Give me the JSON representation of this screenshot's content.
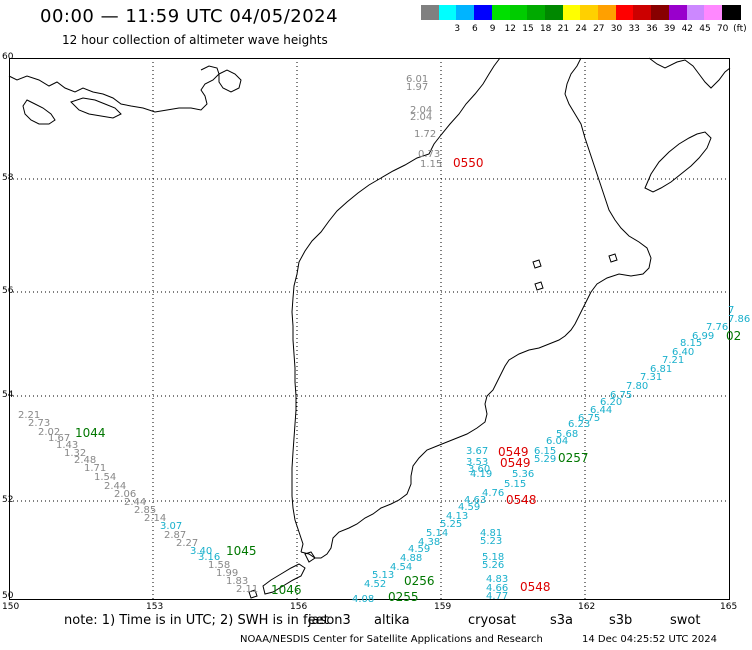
{
  "header": {
    "title": "00:00 — 11:59 UTC 04/05/2024",
    "subtitle": "12 hour collection of altimeter wave heights"
  },
  "scale": {
    "unit": "(ft)",
    "items": [
      {
        "label": "",
        "color": "#808080"
      },
      {
        "label": "3",
        "color": "#00ffff"
      },
      {
        "label": "6",
        "color": "#00b4ff"
      },
      {
        "label": "9",
        "color": "#0000ff"
      },
      {
        "label": "12",
        "color": "#00e000"
      },
      {
        "label": "15",
        "color": "#00cc00"
      },
      {
        "label": "18",
        "color": "#00aa00"
      },
      {
        "label": "21",
        "color": "#008800"
      },
      {
        "label": "24",
        "color": "#ffff00"
      },
      {
        "label": "27",
        "color": "#ffd000"
      },
      {
        "label": "30",
        "color": "#ffa000"
      },
      {
        "label": "33",
        "color": "#ff0000"
      },
      {
        "label": "36",
        "color": "#cc0000"
      },
      {
        "label": "39",
        "color": "#880000"
      },
      {
        "label": "42",
        "color": "#9900cc"
      },
      {
        "label": "45",
        "color": "#cc88ff"
      },
      {
        "label": "70",
        "color": "#ff88ff"
      },
      {
        "label": "",
        "color": "#000000"
      }
    ]
  },
  "axes": {
    "lon_labels": [
      "150",
      "153",
      "156",
      "159",
      "162",
      "165"
    ],
    "lat_labels": [
      "60",
      "58",
      "56",
      "54",
      "52",
      "50"
    ]
  },
  "passes": [
    {
      "time": "0550",
      "color": "#dd0000"
    },
    {
      "time": "1044",
      "color": "#007700"
    },
    {
      "time": "1045",
      "color": "#007700"
    },
    {
      "time": "1046",
      "color": "#007700"
    },
    {
      "time": "0549",
      "color": "#dd0000"
    },
    {
      "time": "0549",
      "color": "#dd0000"
    },
    {
      "time": "0257",
      "color": "#007700"
    },
    {
      "time": "0548",
      "color": "#dd0000"
    },
    {
      "time": "0548",
      "color": "#dd0000"
    },
    {
      "time": "0256",
      "color": "#007700"
    },
    {
      "time": "0255",
      "color": "#007700"
    },
    {
      "time": "02",
      "color": "#007700"
    }
  ],
  "measurements": [
    {
      "track": "gray-north",
      "color": "#888888",
      "values": [
        "6.01",
        "1.97",
        "2.04",
        "2.04",
        "1.72",
        "0.73",
        "1.15"
      ]
    },
    {
      "track": "gray-west",
      "color": "#888888",
      "values": [
        "2.21",
        "2.73",
        "2.02",
        "1.67",
        "1.43",
        "1.32",
        "2.48",
        "1.71",
        "1.54",
        "2.44",
        "2.06",
        "2.44",
        "2.85",
        "2.14",
        "2.87",
        "2.27",
        "1.58",
        "1.99",
        "1.83",
        "2.11"
      ]
    },
    {
      "track": "cyan-west",
      "color": "#1ab0cc",
      "values": [
        "3.07",
        "3.40",
        "3.16"
      ]
    },
    {
      "track": "cyan-east",
      "color": "#1ab0cc",
      "values": [
        "7",
        "7.86",
        "7.76",
        "6.99",
        "8.15",
        "6.40",
        "7.21",
        "6.81",
        "7.31",
        "7.80",
        "6.75",
        "6.20",
        "6.44",
        "6.75",
        "6.23",
        "5.68",
        "6.04",
        "6.15",
        "3.67",
        "3.53",
        "3.60",
        "4.19",
        "5.29",
        "5.36",
        "5.15",
        "4.76",
        "4.63",
        "4.59",
        "4.13",
        "5.25",
        "5.14",
        "4.38",
        "4.59",
        "4.88",
        "4.54",
        "5.13",
        "4.52",
        "4.08",
        "4.81",
        "5.23",
        "5.18",
        "5.26",
        "4.83",
        "4.66",
        "4.77"
      ]
    }
  ],
  "footer": {
    "note": "note: 1) Time is in UTC; 2) SWH is in feet",
    "satellites": [
      {
        "name": "jason3",
        "color": "#007700"
      },
      {
        "name": "altika",
        "color": "#ff9900"
      },
      {
        "name": "cryosat",
        "color": "#dd0000"
      },
      {
        "name": "s3a",
        "color": "#880000"
      },
      {
        "name": "s3b",
        "color": "#c8a8f0"
      },
      {
        "name": "swot",
        "color": "#ff99ff"
      }
    ],
    "credit": "NOAA/NESDIS Center for Satellite Applications and Research",
    "timestamp": "14 Dec 04:25:52 UTC 2024"
  }
}
